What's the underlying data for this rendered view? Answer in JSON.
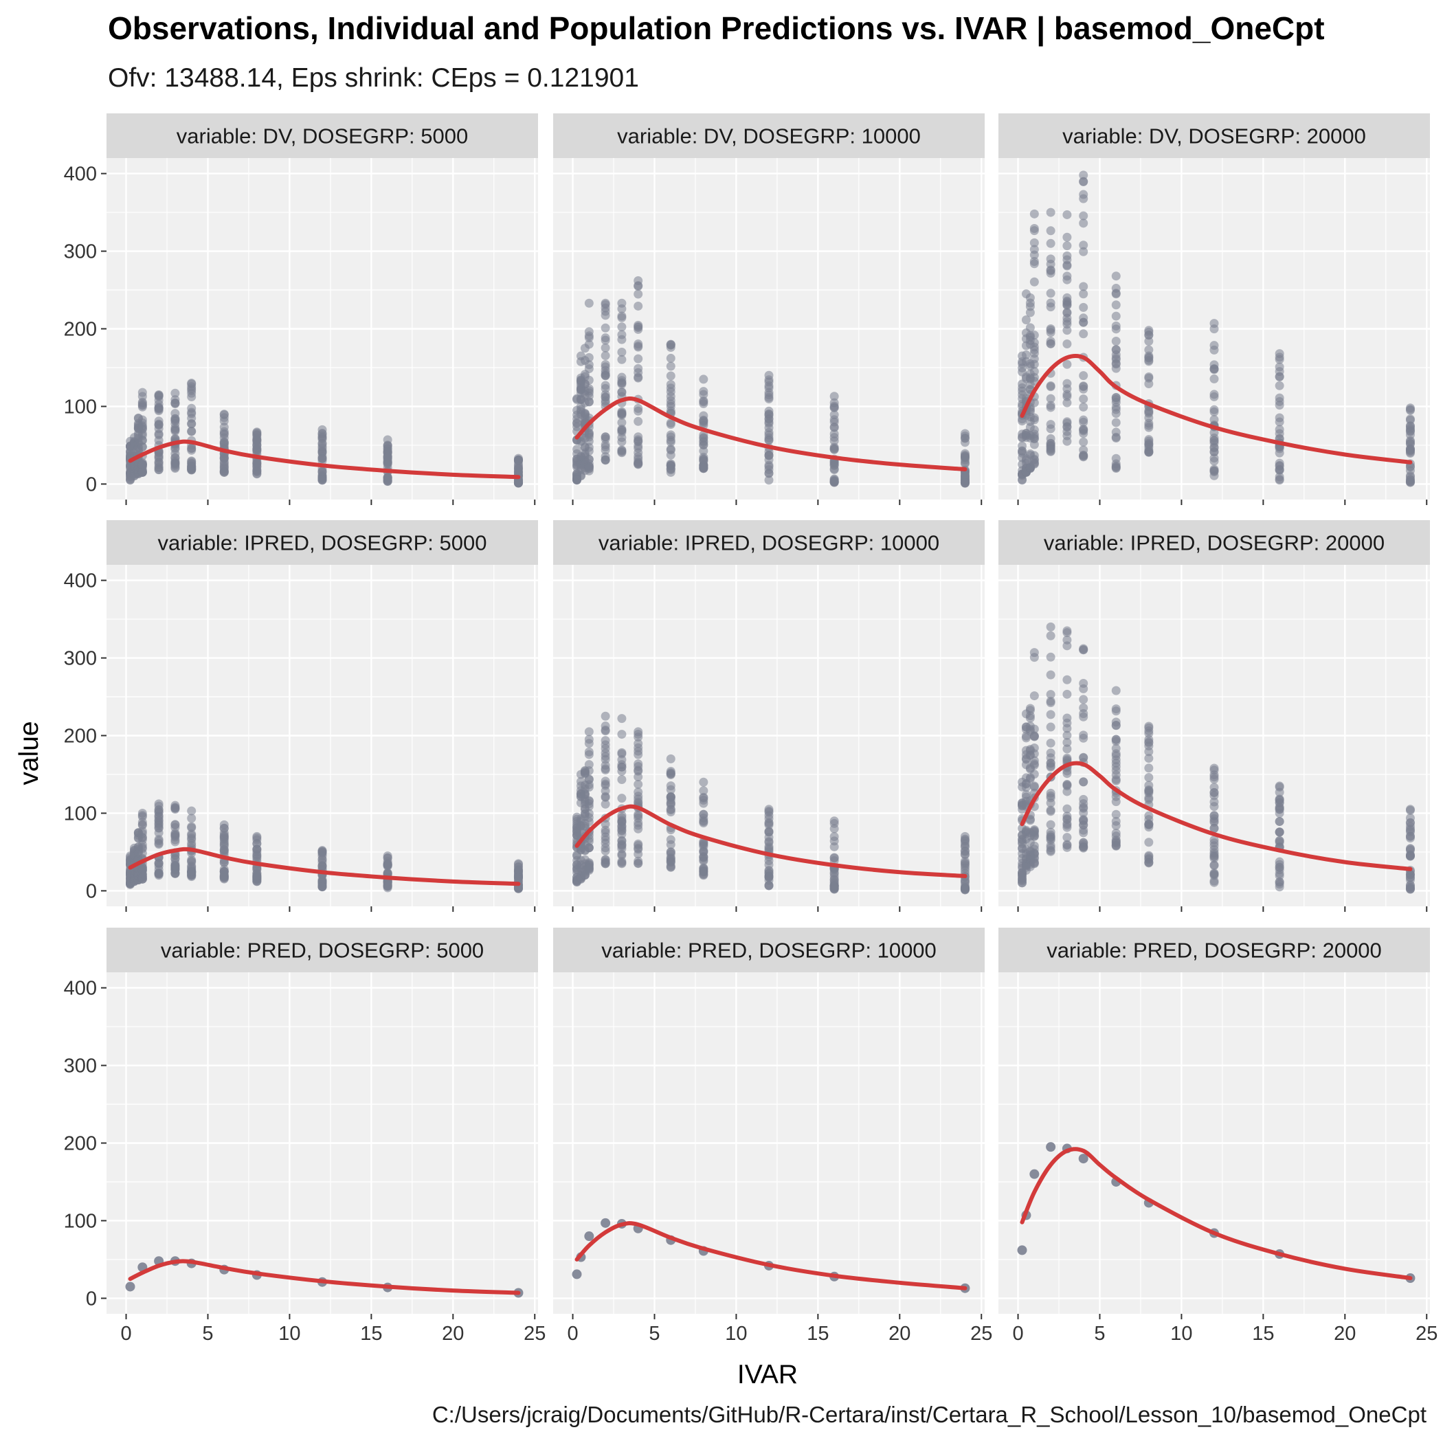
{
  "title": "Observations, Individual and Population Predictions vs. IVAR | basemod_OneCpt",
  "subtitle": "Ofv: 13488.14, Eps shrink: CEps = 0.121901",
  "caption": "C:/Users/jcraig/Documents/GitHub/R-Certara/inst/Certara_R_School/Lesson_10/basemod_OneCpt",
  "colors": {
    "panel_bg": "#f0f0f0",
    "strip_bg": "#d9d9d9",
    "grid": "#ffffff",
    "points": "#7a8090",
    "smooth": "#d33a3a"
  },
  "chart_data": {
    "type": "scatter",
    "xlabel": "IVAR",
    "ylabel": "value",
    "xlim": [
      -1.2,
      25.2
    ],
    "ylim": [
      -20,
      420
    ],
    "x_ticks": [
      0,
      5,
      10,
      15,
      20,
      25
    ],
    "y_ticks": [
      0,
      100,
      200,
      300,
      400
    ],
    "x_tick_labels": [
      "0",
      "5",
      "10",
      "15",
      "20",
      "25"
    ],
    "y_tick_labels": [
      "0",
      "100",
      "200",
      "300",
      "400"
    ],
    "grid": true,
    "facet_rows": [
      "DV",
      "IPRED",
      "PRED"
    ],
    "facet_cols": [
      "5000",
      "10000",
      "20000"
    ],
    "times": [
      0.25,
      0.5,
      0.75,
      1,
      2,
      3,
      4,
      6,
      8,
      12,
      16,
      24
    ],
    "panels": [
      {
        "label": "variable: DV, DOSEGRP: 5000",
        "row": 0,
        "col": 0,
        "smooth": [
          [
            0.25,
            30
          ],
          [
            1,
            38
          ],
          [
            2,
            47
          ],
          [
            3,
            53
          ],
          [
            4,
            54
          ],
          [
            6,
            43
          ],
          [
            8,
            35
          ],
          [
            12,
            24
          ],
          [
            16,
            17
          ],
          [
            20,
            12
          ],
          [
            24,
            9
          ]
        ],
        "points_range": [
          [
            0.25,
            5,
            55
          ],
          [
            0.5,
            10,
            60
          ],
          [
            0.75,
            12,
            85
          ],
          [
            1,
            15,
            118
          ],
          [
            2,
            18,
            115
          ],
          [
            3,
            20,
            117
          ],
          [
            4,
            18,
            130
          ],
          [
            6,
            15,
            90
          ],
          [
            8,
            12,
            67
          ],
          [
            12,
            5,
            70
          ],
          [
            16,
            3,
            57
          ],
          [
            24,
            1,
            33
          ]
        ]
      },
      {
        "label": "variable: DV, DOSEGRP: 10000",
        "row": 0,
        "col": 1,
        "smooth": [
          [
            0.25,
            60
          ],
          [
            1,
            78
          ],
          [
            2,
            96
          ],
          [
            3,
            108
          ],
          [
            4,
            108
          ],
          [
            6,
            86
          ],
          [
            8,
            70
          ],
          [
            12,
            48
          ],
          [
            16,
            34
          ],
          [
            20,
            25
          ],
          [
            24,
            19
          ]
        ],
        "points_range": [
          [
            0.25,
            5,
            110
          ],
          [
            0.5,
            10,
            165
          ],
          [
            0.75,
            12,
            175
          ],
          [
            1,
            15,
            233
          ],
          [
            2,
            30,
            233
          ],
          [
            3,
            40,
            233
          ],
          [
            4,
            25,
            262
          ],
          [
            6,
            15,
            180
          ],
          [
            8,
            20,
            135
          ],
          [
            12,
            5,
            140
          ],
          [
            16,
            2,
            113
          ],
          [
            24,
            1,
            65
          ]
        ]
      },
      {
        "label": "variable: DV, DOSEGRP: 20000",
        "row": 0,
        "col": 2,
        "smooth": [
          [
            0.25,
            88
          ],
          [
            1,
            120
          ],
          [
            2,
            148
          ],
          [
            3,
            163
          ],
          [
            4,
            163
          ],
          [
            5,
            145
          ],
          [
            6,
            125
          ],
          [
            8,
            103
          ],
          [
            12,
            73
          ],
          [
            16,
            53
          ],
          [
            20,
            38
          ],
          [
            24,
            28
          ]
        ],
        "points_range": [
          [
            0.25,
            5,
            165
          ],
          [
            0.5,
            15,
            245
          ],
          [
            0.75,
            20,
            240
          ],
          [
            1,
            25,
            348
          ],
          [
            2,
            40,
            350
          ],
          [
            3,
            55,
            347
          ],
          [
            4,
            35,
            398
          ],
          [
            6,
            20,
            268
          ],
          [
            8,
            40,
            198
          ],
          [
            12,
            10,
            207
          ],
          [
            16,
            5,
            168
          ],
          [
            24,
            2,
            98
          ]
        ]
      },
      {
        "label": "variable: IPRED, DOSEGRP: 5000",
        "row": 1,
        "col": 0,
        "smooth": [
          [
            0.25,
            30
          ],
          [
            1,
            38
          ],
          [
            2,
            47
          ],
          [
            3,
            52
          ],
          [
            4,
            53
          ],
          [
            6,
            43
          ],
          [
            8,
            35
          ],
          [
            12,
            24
          ],
          [
            16,
            17
          ],
          [
            20,
            12
          ],
          [
            24,
            9
          ]
        ],
        "points_range": [
          [
            0.25,
            8,
            45
          ],
          [
            0.5,
            12,
            55
          ],
          [
            0.75,
            14,
            75
          ],
          [
            1,
            15,
            100
          ],
          [
            2,
            20,
            112
          ],
          [
            3,
            22,
            110
          ],
          [
            4,
            18,
            103
          ],
          [
            6,
            15,
            85
          ],
          [
            8,
            12,
            70
          ],
          [
            12,
            5,
            52
          ],
          [
            16,
            3,
            45
          ],
          [
            24,
            1,
            35
          ]
        ]
      },
      {
        "label": "variable: IPRED, DOSEGRP: 10000",
        "row": 1,
        "col": 1,
        "smooth": [
          [
            0.25,
            58
          ],
          [
            1,
            77
          ],
          [
            2,
            95
          ],
          [
            3,
            106
          ],
          [
            4,
            107
          ],
          [
            6,
            85
          ],
          [
            8,
            69
          ],
          [
            12,
            47
          ],
          [
            16,
            33
          ],
          [
            20,
            24
          ],
          [
            24,
            19
          ]
        ],
        "points_range": [
          [
            0.25,
            10,
            95
          ],
          [
            0.5,
            15,
            150
          ],
          [
            0.75,
            20,
            155
          ],
          [
            1,
            25,
            205
          ],
          [
            2,
            35,
            225
          ],
          [
            3,
            35,
            222
          ],
          [
            4,
            35,
            205
          ],
          [
            6,
            30,
            170
          ],
          [
            8,
            20,
            140
          ],
          [
            12,
            5,
            105
          ],
          [
            16,
            2,
            90
          ],
          [
            24,
            1,
            70
          ]
        ]
      },
      {
        "label": "variable: IPRED, DOSEGRP: 20000",
        "row": 1,
        "col": 2,
        "smooth": [
          [
            0.25,
            86
          ],
          [
            1,
            118
          ],
          [
            2,
            146
          ],
          [
            3,
            162
          ],
          [
            4,
            163
          ],
          [
            5,
            148
          ],
          [
            6,
            130
          ],
          [
            8,
            106
          ],
          [
            12,
            73
          ],
          [
            16,
            52
          ],
          [
            20,
            37
          ],
          [
            24,
            28
          ]
        ],
        "points_range": [
          [
            0.25,
            10,
            140
          ],
          [
            0.5,
            25,
            228
          ],
          [
            0.75,
            30,
            235
          ],
          [
            1,
            35,
            307
          ],
          [
            2,
            50,
            340
          ],
          [
            3,
            55,
            335
          ],
          [
            4,
            55,
            312
          ],
          [
            6,
            45,
            258
          ],
          [
            8,
            35,
            212
          ],
          [
            12,
            10,
            158
          ],
          [
            16,
            5,
            135
          ],
          [
            24,
            2,
            105
          ]
        ]
      },
      {
        "label": "variable: PRED, DOSEGRP: 5000",
        "row": 2,
        "col": 0,
        "smooth": [
          [
            0.25,
            25
          ],
          [
            1,
            33
          ],
          [
            2,
            42
          ],
          [
            3,
            47
          ],
          [
            4,
            47
          ],
          [
            6,
            39
          ],
          [
            8,
            32
          ],
          [
            12,
            22
          ],
          [
            16,
            15
          ],
          [
            20,
            10
          ],
          [
            24,
            7
          ]
        ],
        "points": [
          [
            0.25,
            15
          ],
          [
            1,
            40
          ],
          [
            2,
            48
          ],
          [
            3,
            48
          ],
          [
            4,
            45
          ],
          [
            6,
            37
          ],
          [
            8,
            30
          ],
          [
            12,
            21
          ],
          [
            16,
            14
          ],
          [
            24,
            7
          ]
        ]
      },
      {
        "label": "variable: PRED, DOSEGRP: 10000",
        "row": 2,
        "col": 1,
        "smooth": [
          [
            0.25,
            50
          ],
          [
            1,
            68
          ],
          [
            2,
            85
          ],
          [
            3,
            95
          ],
          [
            4,
            95
          ],
          [
            6,
            78
          ],
          [
            8,
            64
          ],
          [
            12,
            43
          ],
          [
            16,
            29
          ],
          [
            20,
            20
          ],
          [
            24,
            13
          ]
        ],
        "points": [
          [
            0.25,
            31
          ],
          [
            0.5,
            53
          ],
          [
            1,
            80
          ],
          [
            2,
            97
          ],
          [
            3,
            96
          ],
          [
            4,
            90
          ],
          [
            6,
            75
          ],
          [
            8,
            61
          ],
          [
            12,
            42
          ],
          [
            16,
            28
          ],
          [
            24,
            13
          ]
        ]
      },
      {
        "label": "variable: PRED, DOSEGRP: 20000",
        "row": 2,
        "col": 2,
        "smooth": [
          [
            0.25,
            98
          ],
          [
            1,
            137
          ],
          [
            2,
            172
          ],
          [
            3,
            190
          ],
          [
            4,
            190
          ],
          [
            5,
            172
          ],
          [
            6,
            155
          ],
          [
            8,
            127
          ],
          [
            12,
            84
          ],
          [
            16,
            57
          ],
          [
            20,
            38
          ],
          [
            24,
            26
          ]
        ],
        "points": [
          [
            0.25,
            62
          ],
          [
            0.5,
            107
          ],
          [
            1,
            160
          ],
          [
            2,
            195
          ],
          [
            3,
            193
          ],
          [
            4,
            180
          ],
          [
            6,
            150
          ],
          [
            8,
            123
          ],
          [
            12,
            84
          ],
          [
            16,
            57
          ],
          [
            24,
            26
          ]
        ]
      }
    ]
  }
}
